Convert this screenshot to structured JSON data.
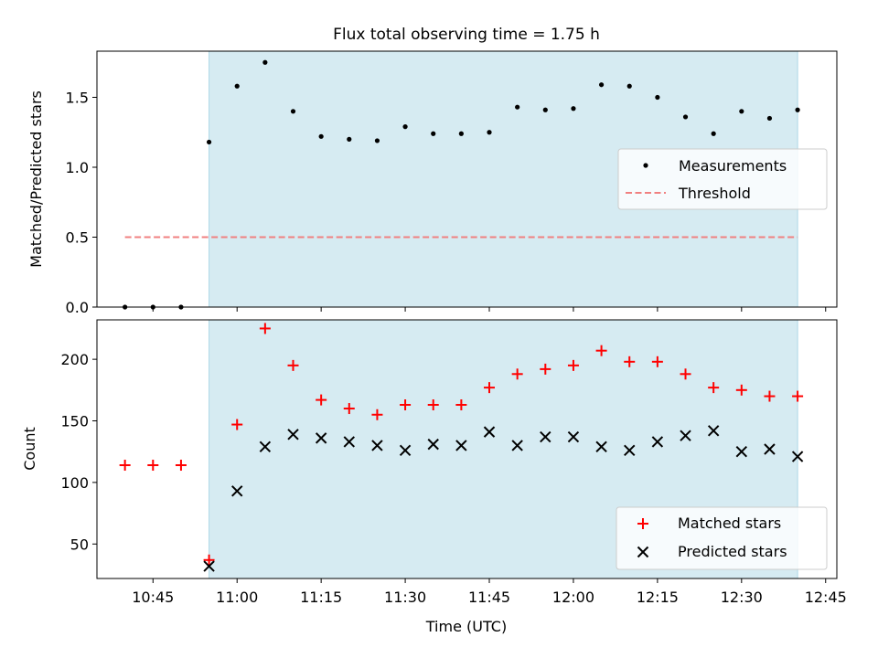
{
  "figure": {
    "title": "Flux total observing time = 1.75 h",
    "xlabel": "Time (UTC)"
  },
  "colors": {
    "shade": "#add8e6",
    "threshold": "#f08080",
    "measurements": "#000000",
    "matched": "#ff0000",
    "predicted": "#000000"
  },
  "chart_data": [
    {
      "type": "scatter",
      "panel": "top",
      "ylabel": "Matched/Predicted stars",
      "ylim": [
        0,
        1.83
      ],
      "yticks": [
        0.0,
        0.5,
        1.0,
        1.5
      ],
      "ytick_labels": [
        "0.0",
        "0.5",
        "1.0",
        "1.5"
      ],
      "xlim": [
        "10:35",
        "12:47"
      ],
      "xticks": [
        "10:45",
        "11:00",
        "11:15",
        "11:30",
        "11:45",
        "12:00",
        "12:15",
        "12:30",
        "12:45"
      ],
      "shaded_interval": [
        "10:55",
        "12:40"
      ],
      "legend_location": "center-right",
      "series": [
        {
          "name": "Measurements",
          "marker": "dot",
          "x": [
            "10:40",
            "10:45",
            "10:50",
            "10:55",
            "11:00",
            "11:05",
            "11:10",
            "11:15",
            "11:20",
            "11:25",
            "11:30",
            "11:35",
            "11:40",
            "11:45",
            "11:50",
            "11:55",
            "12:00",
            "12:05",
            "12:10",
            "12:15",
            "12:20",
            "12:25",
            "12:30",
            "12:35",
            "12:40"
          ],
          "y": [
            0.0,
            0.0,
            0.0,
            1.18,
            1.58,
            1.75,
            1.4,
            1.22,
            1.2,
            1.19,
            1.29,
            1.24,
            1.24,
            1.25,
            1.43,
            1.41,
            1.42,
            1.59,
            1.58,
            1.5,
            1.36,
            1.24,
            1.4,
            1.35,
            1.41
          ]
        },
        {
          "name": "Threshold",
          "style": "dashed",
          "x": [
            "10:40",
            "12:40"
          ],
          "y": [
            0.5,
            0.5
          ]
        }
      ]
    },
    {
      "type": "scatter",
      "panel": "bottom",
      "ylabel": "Count",
      "ylim": [
        22,
        232
      ],
      "yticks": [
        50,
        100,
        150,
        200
      ],
      "ytick_labels": [
        "50",
        "100",
        "150",
        "200"
      ],
      "xlim": [
        "10:35",
        "12:47"
      ],
      "xticks": [
        "10:45",
        "11:00",
        "11:15",
        "11:30",
        "11:45",
        "12:00",
        "12:15",
        "12:30",
        "12:45"
      ],
      "xtick_labels": [
        "10:45",
        "11:00",
        "11:15",
        "11:30",
        "11:45",
        "12:00",
        "12:15",
        "12:30",
        "12:45"
      ],
      "shaded_interval": [
        "10:55",
        "12:40"
      ],
      "legend_location": "lower-right",
      "series": [
        {
          "name": "Matched stars",
          "marker": "plus",
          "x": [
            "10:40",
            "10:45",
            "10:50",
            "10:55",
            "11:00",
            "11:05",
            "11:10",
            "11:15",
            "11:20",
            "11:25",
            "11:30",
            "11:35",
            "11:40",
            "11:45",
            "11:50",
            "11:55",
            "12:00",
            "12:05",
            "12:10",
            "12:15",
            "12:20",
            "12:25",
            "12:30",
            "12:35",
            "12:40"
          ],
          "y": [
            114,
            114,
            114,
            37,
            147,
            225,
            195,
            167,
            160,
            155,
            163,
            163,
            163,
            177,
            188,
            192,
            195,
            207,
            198,
            198,
            188,
            177,
            175,
            170,
            170
          ]
        },
        {
          "name": "Predicted stars",
          "marker": "x",
          "x": [
            "10:55",
            "11:00",
            "11:05",
            "11:10",
            "11:15",
            "11:20",
            "11:25",
            "11:30",
            "11:35",
            "11:40",
            "11:45",
            "11:50",
            "11:55",
            "12:00",
            "12:05",
            "12:10",
            "12:15",
            "12:20",
            "12:25",
            "12:30",
            "12:35",
            "12:40"
          ],
          "y": [
            32,
            93,
            129,
            139,
            136,
            133,
            130,
            126,
            131,
            130,
            141,
            130,
            137,
            137,
            129,
            126,
            133,
            138,
            142,
            125,
            127,
            121
          ]
        }
      ]
    }
  ]
}
